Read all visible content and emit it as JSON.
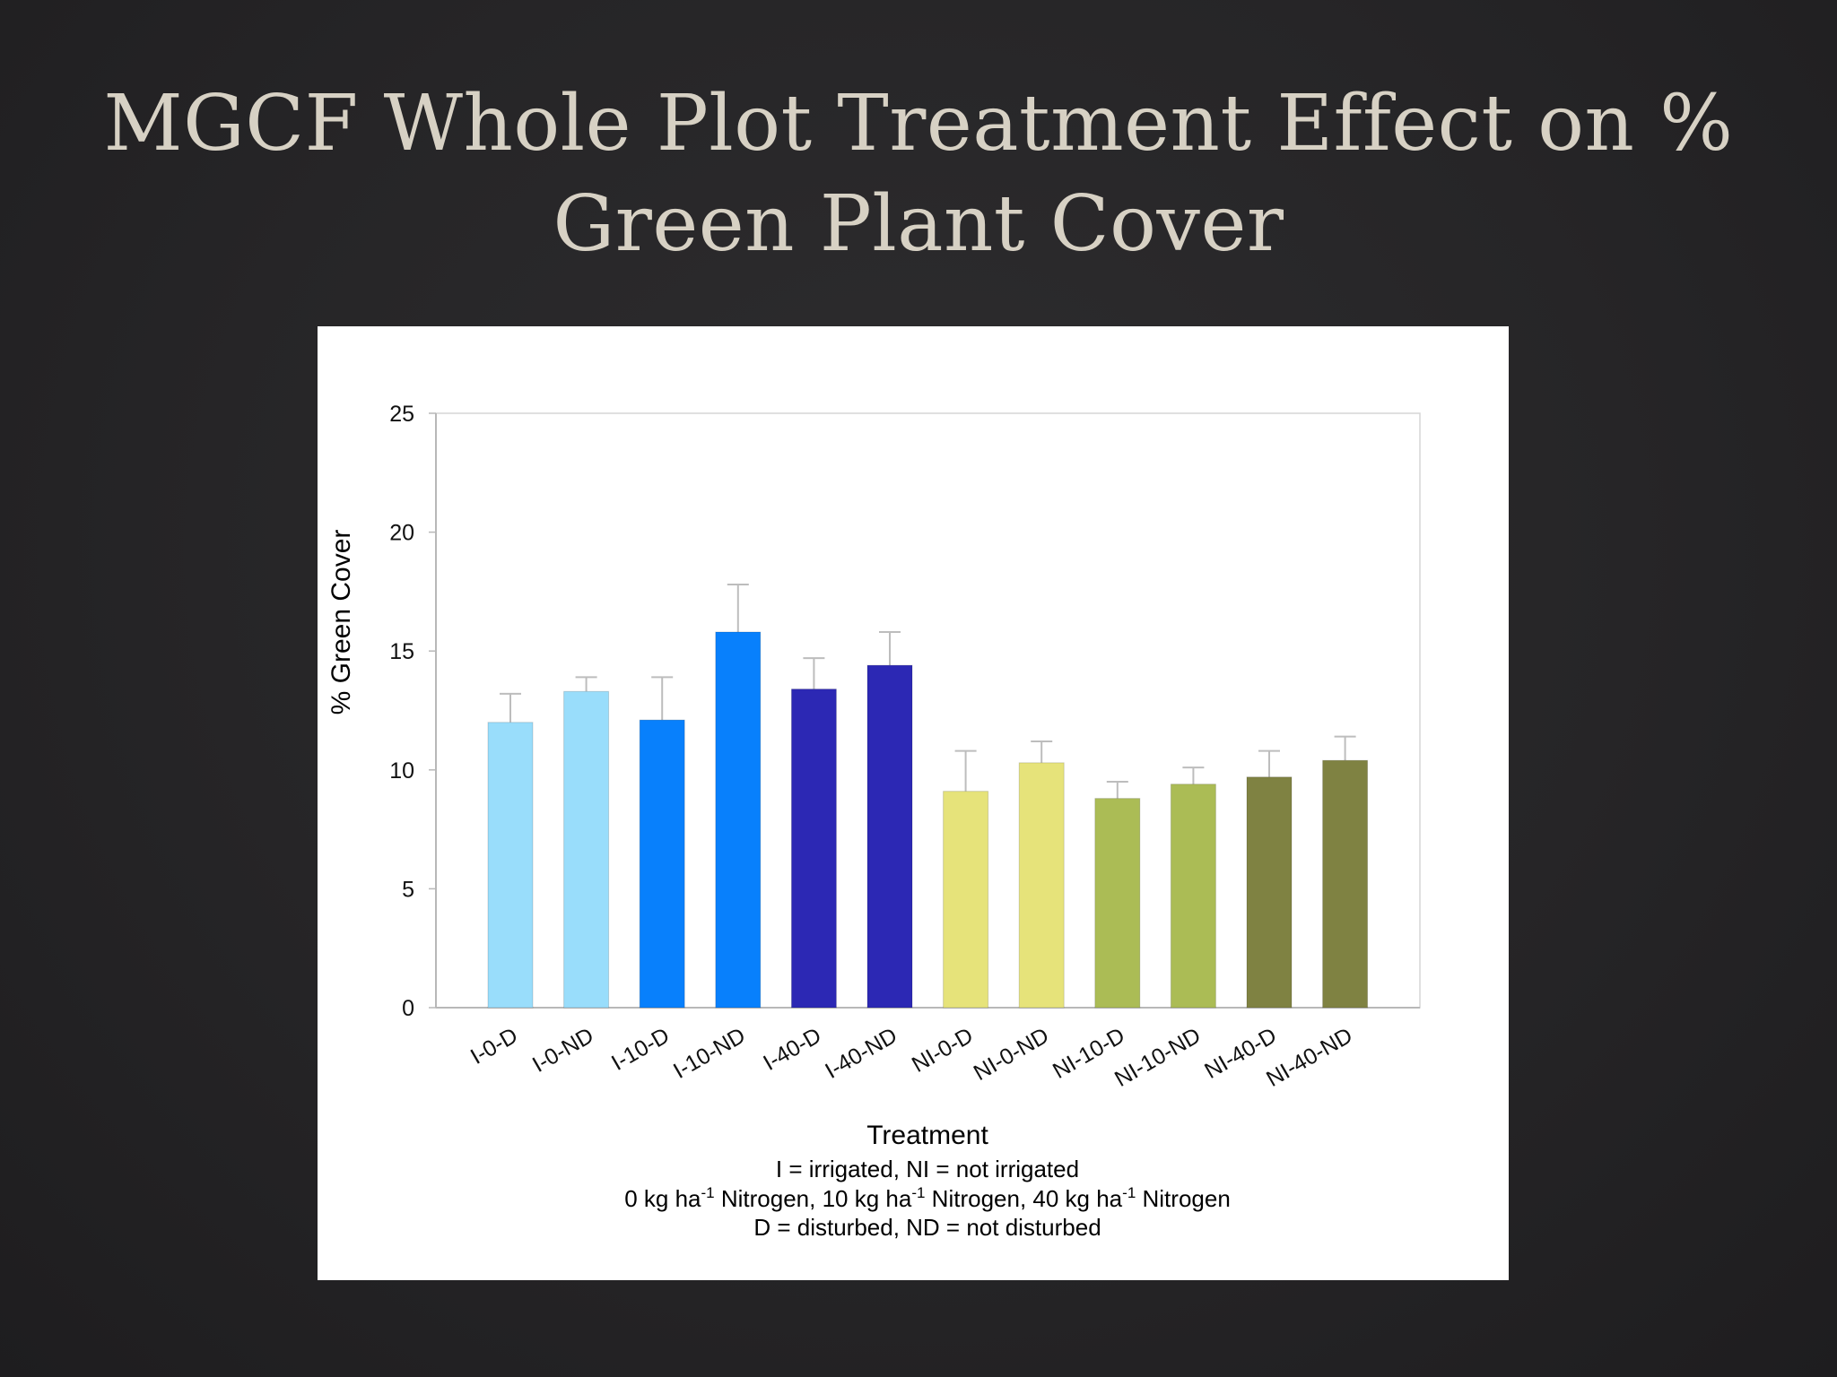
{
  "slide": {
    "title_line1": "MGCF Whole Plot Treatment Effect on %",
    "title_line2": "Green Plant Cover"
  },
  "chart_data": {
    "type": "bar",
    "categories": [
      "I-0-D",
      "I-0-ND",
      "I-10-D",
      "I-10-ND",
      "I-40-D",
      "I-40-ND",
      "NI-0-D",
      "NI-0-ND",
      "NI-10-D",
      "NI-10-ND",
      "NI-40-D",
      "NI-40-ND"
    ],
    "values": [
      12.0,
      13.3,
      12.1,
      15.8,
      13.4,
      14.4,
      9.1,
      10.3,
      8.8,
      9.4,
      9.7,
      10.4
    ],
    "errors_upper": [
      13.2,
      13.9,
      13.9,
      17.8,
      14.7,
      15.8,
      10.8,
      11.2,
      9.5,
      10.1,
      10.8,
      11.4
    ],
    "colors": [
      "#99ddfb",
      "#99ddfb",
      "#0880fc",
      "#0880fc",
      "#2c28b4",
      "#2c28b4",
      "#e6e37a",
      "#e6e37a",
      "#abbc55",
      "#abbc55",
      "#7f8242",
      "#7f8242"
    ],
    "ylabel": "% Green Cover",
    "xlabel": "Treatment",
    "ylim": [
      0,
      25
    ],
    "yticks": [
      0,
      5,
      10,
      15,
      20,
      25
    ],
    "notes": {
      "line1": "I = irrigated, NI = not irrigated",
      "line2_parts": [
        "0 kg ha",
        "-1",
        " Nitrogen, 10 kg ha",
        "-1",
        " Nitrogen, 40 kg ha",
        "-1",
        " Nitrogen"
      ],
      "line3": "D = disturbed, ND = not disturbed"
    },
    "grid": false,
    "legend": "none"
  }
}
